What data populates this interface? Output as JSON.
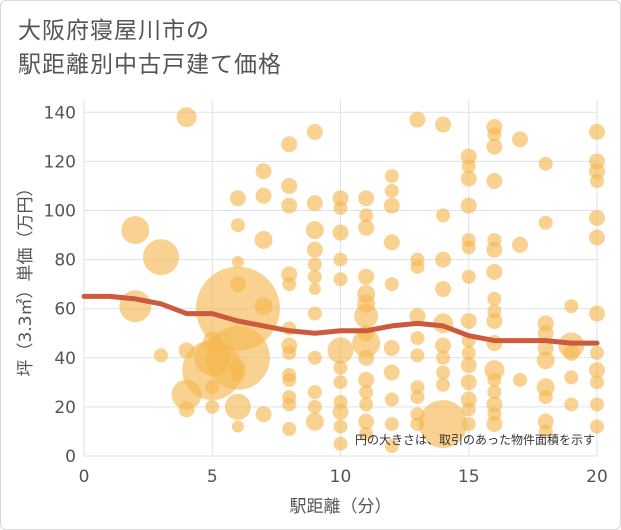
{
  "title_lines": [
    "大阪府寝屋川市の",
    "駅距離別中古戸建て価格"
  ],
  "chart_data": {
    "type": "scatter",
    "title": "大阪府寝屋川市の駅距離別中古戸建て価格",
    "xlabel": "駅距離（分）",
    "ylabel": "坪（3.3㎡）単価（万円）",
    "xlim": [
      0,
      20
    ],
    "ylim": [
      0,
      145
    ],
    "xticks": [
      0,
      5,
      10,
      15,
      20
    ],
    "yticks": [
      0,
      20,
      40,
      60,
      80,
      100,
      120,
      140
    ],
    "grid": true,
    "note": "円の大きさは、取引のあった物件面積を示す",
    "colors": {
      "bubble": "#f5b74e",
      "trend": "#cd5a3c",
      "grid": "#dde3ea",
      "text": "#555555"
    },
    "points": [
      {
        "x": 2,
        "y": 92,
        "s": 14
      },
      {
        "x": 2,
        "y": 61,
        "s": 16
      },
      {
        "x": 3,
        "y": 81,
        "s": 18
      },
      {
        "x": 3,
        "y": 41,
        "s": 7
      },
      {
        "x": 4,
        "y": 138,
        "s": 10
      },
      {
        "x": 4,
        "y": 43,
        "s": 8
      },
      {
        "x": 4,
        "y": 25,
        "s": 15
      },
      {
        "x": 4,
        "y": 19,
        "s": 8
      },
      {
        "x": 5,
        "y": 47,
        "s": 9
      },
      {
        "x": 5,
        "y": 40,
        "s": 18
      },
      {
        "x": 5,
        "y": 35,
        "s": 30
      },
      {
        "x": 5,
        "y": 28,
        "s": 7
      },
      {
        "x": 5,
        "y": 20,
        "s": 7
      },
      {
        "x": 6,
        "y": 105,
        "s": 8
      },
      {
        "x": 6,
        "y": 94,
        "s": 7
      },
      {
        "x": 6,
        "y": 79,
        "s": 6
      },
      {
        "x": 6,
        "y": 70,
        "s": 8
      },
      {
        "x": 6,
        "y": 60,
        "s": 42
      },
      {
        "x": 6,
        "y": 40,
        "s": 32
      },
      {
        "x": 6,
        "y": 36,
        "s": 8
      },
      {
        "x": 6,
        "y": 33,
        "s": 7
      },
      {
        "x": 6,
        "y": 20,
        "s": 13
      },
      {
        "x": 6,
        "y": 12,
        "s": 6
      },
      {
        "x": 7,
        "y": 116,
        "s": 8
      },
      {
        "x": 7,
        "y": 106,
        "s": 8
      },
      {
        "x": 7,
        "y": 88,
        "s": 9
      },
      {
        "x": 7,
        "y": 61,
        "s": 9
      },
      {
        "x": 7,
        "y": 17,
        "s": 8
      },
      {
        "x": 8,
        "y": 127,
        "s": 8
      },
      {
        "x": 8,
        "y": 110,
        "s": 8
      },
      {
        "x": 8,
        "y": 102,
        "s": 8
      },
      {
        "x": 8,
        "y": 74,
        "s": 8
      },
      {
        "x": 8,
        "y": 70,
        "s": 7
      },
      {
        "x": 8,
        "y": 52,
        "s": 7
      },
      {
        "x": 8,
        "y": 45,
        "s": 8
      },
      {
        "x": 8,
        "y": 42,
        "s": 7
      },
      {
        "x": 8,
        "y": 33,
        "s": 7
      },
      {
        "x": 8,
        "y": 31,
        "s": 7
      },
      {
        "x": 8,
        "y": 24,
        "s": 7
      },
      {
        "x": 8,
        "y": 21,
        "s": 7
      },
      {
        "x": 8,
        "y": 11,
        "s": 7
      },
      {
        "x": 9,
        "y": 132,
        "s": 8
      },
      {
        "x": 9,
        "y": 103,
        "s": 8
      },
      {
        "x": 9,
        "y": 92,
        "s": 9
      },
      {
        "x": 9,
        "y": 84,
        "s": 8
      },
      {
        "x": 9,
        "y": 78,
        "s": 7
      },
      {
        "x": 9,
        "y": 73,
        "s": 7
      },
      {
        "x": 9,
        "y": 68,
        "s": 6
      },
      {
        "x": 9,
        "y": 58,
        "s": 7
      },
      {
        "x": 9,
        "y": 40,
        "s": 7
      },
      {
        "x": 9,
        "y": 26,
        "s": 7
      },
      {
        "x": 9,
        "y": 20,
        "s": 7
      },
      {
        "x": 9,
        "y": 14,
        "s": 9
      },
      {
        "x": 10,
        "y": 105,
        "s": 8
      },
      {
        "x": 10,
        "y": 101,
        "s": 7
      },
      {
        "x": 10,
        "y": 91,
        "s": 8
      },
      {
        "x": 10,
        "y": 80,
        "s": 7
      },
      {
        "x": 10,
        "y": 72,
        "s": 7
      },
      {
        "x": 10,
        "y": 43,
        "s": 13
      },
      {
        "x": 10,
        "y": 36,
        "s": 7
      },
      {
        "x": 10,
        "y": 30,
        "s": 7
      },
      {
        "x": 10,
        "y": 22,
        "s": 7
      },
      {
        "x": 10,
        "y": 18,
        "s": 8
      },
      {
        "x": 10,
        "y": 12,
        "s": 7
      },
      {
        "x": 10,
        "y": 5,
        "s": 7
      },
      {
        "x": 11,
        "y": 105,
        "s": 8
      },
      {
        "x": 11,
        "y": 98,
        "s": 7
      },
      {
        "x": 11,
        "y": 93,
        "s": 8
      },
      {
        "x": 11,
        "y": 73,
        "s": 8
      },
      {
        "x": 11,
        "y": 66,
        "s": 9
      },
      {
        "x": 11,
        "y": 62,
        "s": 9
      },
      {
        "x": 11,
        "y": 57,
        "s": 12
      },
      {
        "x": 11,
        "y": 50,
        "s": 8
      },
      {
        "x": 11,
        "y": 46,
        "s": 14
      },
      {
        "x": 11,
        "y": 40,
        "s": 8
      },
      {
        "x": 11,
        "y": 31,
        "s": 8
      },
      {
        "x": 11,
        "y": 26,
        "s": 7
      },
      {
        "x": 11,
        "y": 21,
        "s": 7
      },
      {
        "x": 11,
        "y": 14,
        "s": 8
      },
      {
        "x": 11,
        "y": 9,
        "s": 7
      },
      {
        "x": 12,
        "y": 114,
        "s": 7
      },
      {
        "x": 12,
        "y": 108,
        "s": 7
      },
      {
        "x": 12,
        "y": 102,
        "s": 8
      },
      {
        "x": 12,
        "y": 87,
        "s": 8
      },
      {
        "x": 12,
        "y": 70,
        "s": 7
      },
      {
        "x": 12,
        "y": 44,
        "s": 8
      },
      {
        "x": 12,
        "y": 34,
        "s": 8
      },
      {
        "x": 12,
        "y": 23,
        "s": 7
      },
      {
        "x": 12,
        "y": 13,
        "s": 7
      },
      {
        "x": 12,
        "y": 4,
        "s": 7
      },
      {
        "x": 13,
        "y": 137,
        "s": 8
      },
      {
        "x": 13,
        "y": 80,
        "s": 7
      },
      {
        "x": 13,
        "y": 77,
        "s": 7
      },
      {
        "x": 13,
        "y": 57,
        "s": 8
      },
      {
        "x": 13,
        "y": 48,
        "s": 7
      },
      {
        "x": 13,
        "y": 41,
        "s": 7
      },
      {
        "x": 13,
        "y": 28,
        "s": 7
      },
      {
        "x": 13,
        "y": 24,
        "s": 7
      },
      {
        "x": 13,
        "y": 17,
        "s": 7
      },
      {
        "x": 13,
        "y": 13,
        "s": 7
      },
      {
        "x": 14,
        "y": 135,
        "s": 8
      },
      {
        "x": 14,
        "y": 98,
        "s": 7
      },
      {
        "x": 14,
        "y": 80,
        "s": 8
      },
      {
        "x": 14,
        "y": 68,
        "s": 8
      },
      {
        "x": 14,
        "y": 54,
        "s": 10
      },
      {
        "x": 14,
        "y": 45,
        "s": 8
      },
      {
        "x": 14,
        "y": 40,
        "s": 7
      },
      {
        "x": 14,
        "y": 34,
        "s": 7
      },
      {
        "x": 14,
        "y": 29,
        "s": 7
      },
      {
        "x": 14,
        "y": 13,
        "s": 24
      },
      {
        "x": 15,
        "y": 122,
        "s": 8
      },
      {
        "x": 15,
        "y": 118,
        "s": 7
      },
      {
        "x": 15,
        "y": 113,
        "s": 8
      },
      {
        "x": 15,
        "y": 102,
        "s": 8
      },
      {
        "x": 15,
        "y": 88,
        "s": 7
      },
      {
        "x": 15,
        "y": 85,
        "s": 7
      },
      {
        "x": 15,
        "y": 73,
        "s": 7
      },
      {
        "x": 15,
        "y": 55,
        "s": 8
      },
      {
        "x": 15,
        "y": 47,
        "s": 7
      },
      {
        "x": 15,
        "y": 42,
        "s": 7
      },
      {
        "x": 15,
        "y": 37,
        "s": 8
      },
      {
        "x": 15,
        "y": 30,
        "s": 8
      },
      {
        "x": 15,
        "y": 23,
        "s": 8
      },
      {
        "x": 15,
        "y": 19,
        "s": 7
      },
      {
        "x": 15,
        "y": 13,
        "s": 7
      },
      {
        "x": 16,
        "y": 134,
        "s": 8
      },
      {
        "x": 16,
        "y": 131,
        "s": 7
      },
      {
        "x": 16,
        "y": 126,
        "s": 8
      },
      {
        "x": 16,
        "y": 112,
        "s": 8
      },
      {
        "x": 16,
        "y": 88,
        "s": 7
      },
      {
        "x": 16,
        "y": 84,
        "s": 8
      },
      {
        "x": 16,
        "y": 75,
        "s": 8
      },
      {
        "x": 16,
        "y": 64,
        "s": 7
      },
      {
        "x": 16,
        "y": 59,
        "s": 7
      },
      {
        "x": 16,
        "y": 55,
        "s": 8
      },
      {
        "x": 16,
        "y": 46,
        "s": 8
      },
      {
        "x": 16,
        "y": 35,
        "s": 10
      },
      {
        "x": 16,
        "y": 31,
        "s": 7
      },
      {
        "x": 16,
        "y": 26,
        "s": 7
      },
      {
        "x": 16,
        "y": 21,
        "s": 8
      },
      {
        "x": 16,
        "y": 17,
        "s": 7
      },
      {
        "x": 16,
        "y": 13,
        "s": 8
      },
      {
        "x": 17,
        "y": 129,
        "s": 8
      },
      {
        "x": 17,
        "y": 86,
        "s": 8
      },
      {
        "x": 17,
        "y": 31,
        "s": 7
      },
      {
        "x": 18,
        "y": 119,
        "s": 7
      },
      {
        "x": 18,
        "y": 95,
        "s": 7
      },
      {
        "x": 18,
        "y": 54,
        "s": 8
      },
      {
        "x": 18,
        "y": 50,
        "s": 8
      },
      {
        "x": 18,
        "y": 44,
        "s": 8
      },
      {
        "x": 18,
        "y": 39,
        "s": 9
      },
      {
        "x": 18,
        "y": 28,
        "s": 9
      },
      {
        "x": 18,
        "y": 24,
        "s": 7
      },
      {
        "x": 18,
        "y": 14,
        "s": 8
      },
      {
        "x": 18,
        "y": 10,
        "s": 7
      },
      {
        "x": 19,
        "y": 61,
        "s": 7
      },
      {
        "x": 19,
        "y": 45,
        "s": 13
      },
      {
        "x": 19,
        "y": 42,
        "s": 8
      },
      {
        "x": 19,
        "y": 32,
        "s": 7
      },
      {
        "x": 19,
        "y": 21,
        "s": 7
      },
      {
        "x": 20,
        "y": 132,
        "s": 8
      },
      {
        "x": 20,
        "y": 120,
        "s": 8
      },
      {
        "x": 20,
        "y": 116,
        "s": 8
      },
      {
        "x": 20,
        "y": 112,
        "s": 7
      },
      {
        "x": 20,
        "y": 97,
        "s": 8
      },
      {
        "x": 20,
        "y": 89,
        "s": 8
      },
      {
        "x": 20,
        "y": 58,
        "s": 8
      },
      {
        "x": 20,
        "y": 42,
        "s": 7
      },
      {
        "x": 20,
        "y": 35,
        "s": 8
      },
      {
        "x": 20,
        "y": 30,
        "s": 7
      },
      {
        "x": 20,
        "y": 21,
        "s": 7
      },
      {
        "x": 20,
        "y": 12,
        "s": 7
      }
    ],
    "trend": {
      "x": [
        0,
        1,
        2,
        3,
        4,
        5,
        6,
        7,
        8,
        9,
        10,
        11,
        12,
        13,
        14,
        15,
        16,
        17,
        18,
        19,
        20
      ],
      "y": [
        65,
        65,
        64,
        62,
        58,
        58,
        55,
        53,
        51,
        50,
        51,
        51,
        53,
        54,
        53,
        49,
        47,
        47,
        47,
        46,
        46
      ]
    }
  }
}
